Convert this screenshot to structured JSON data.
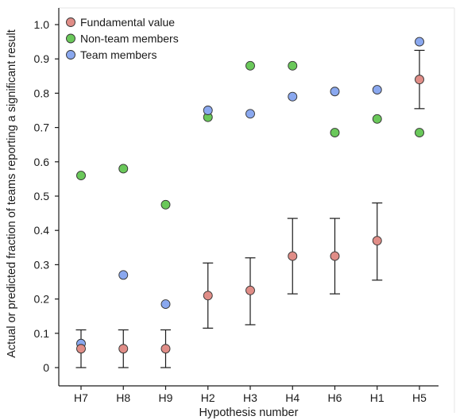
{
  "chart_data": {
    "type": "scatter",
    "title": "",
    "xlabel": "Hypothesis number",
    "ylabel": "Actual or predicted fraction of teams reporting a significant result",
    "ylim": [
      0,
      1.0
    ],
    "yticks": [
      "0",
      "0.1",
      "0.2",
      "0.3",
      "0.4",
      "0.5",
      "0.6",
      "0.7",
      "0.8",
      "0.9",
      "1.0"
    ],
    "categories": [
      "H7",
      "H8",
      "H9",
      "H2",
      "H3",
      "H4",
      "H6",
      "H1",
      "H5"
    ],
    "legend_position": "top-left",
    "grid": false,
    "series": [
      {
        "name": "Fundamental value",
        "color": "#e08d87",
        "values": [
          0.055,
          0.055,
          0.055,
          0.21,
          0.225,
          0.325,
          0.325,
          0.37,
          0.84
        ],
        "error_low": [
          0.0,
          0.0,
          0.0,
          0.115,
          0.125,
          0.215,
          0.215,
          0.255,
          0.755
        ],
        "error_high": [
          0.11,
          0.11,
          0.11,
          0.305,
          0.32,
          0.435,
          0.435,
          0.48,
          0.925
        ]
      },
      {
        "name": "Non-team members",
        "color": "#6ac85a",
        "values": [
          0.56,
          0.58,
          0.475,
          0.73,
          0.88,
          0.88,
          0.685,
          0.725,
          0.685
        ]
      },
      {
        "name": "Team members",
        "color": "#8aa8ef",
        "values": [
          0.07,
          0.27,
          0.185,
          0.75,
          0.74,
          0.79,
          0.805,
          0.81,
          0.95
        ]
      }
    ]
  }
}
